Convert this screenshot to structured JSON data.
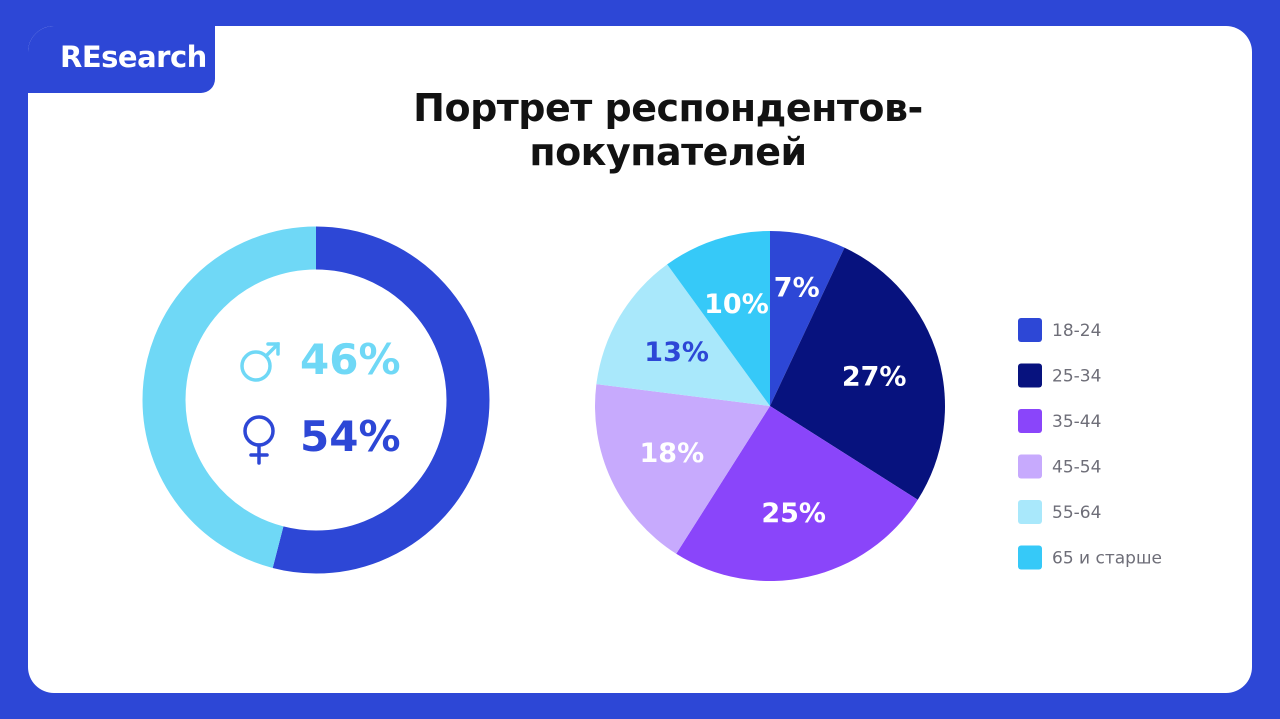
{
  "brand": {
    "label": "REsearch"
  },
  "title": "Портрет респондентов-покупателей",
  "colors": {
    "background": "#2d47d6",
    "male": "#6fd8f6",
    "female": "#2d47d6",
    "male_text": "#6fd8f6",
    "female_text": "#2d47d6"
  },
  "chart_data": [
    {
      "type": "pie",
      "variant": "donut",
      "series": [
        {
          "name": "♂",
          "icon": "male-symbol-icon",
          "value": 46,
          "label": "46%",
          "color": "#6fd8f6"
        },
        {
          "name": "♀",
          "icon": "female-symbol-icon",
          "value": 54,
          "label": "54%",
          "color": "#2d47d6"
        }
      ]
    },
    {
      "type": "pie",
      "legend_position": "right",
      "categories": [
        "18-24",
        "25-34",
        "35-44",
        "45-54",
        "55-64",
        "65 и старше"
      ],
      "values": [
        7,
        27,
        25,
        18,
        13,
        10
      ],
      "labels": [
        "7%",
        "27%",
        "25%",
        "18%",
        "13%",
        "10%"
      ],
      "colors": [
        "#2d47d6",
        "#07127e",
        "#8a45fa",
        "#c7aafd",
        "#a9e8fb",
        "#36c9f8"
      ],
      "label_colors": [
        "#ffffff",
        "#ffffff",
        "#ffffff",
        "#ffffff",
        "#2d47d6",
        "#ffffff"
      ]
    }
  ]
}
